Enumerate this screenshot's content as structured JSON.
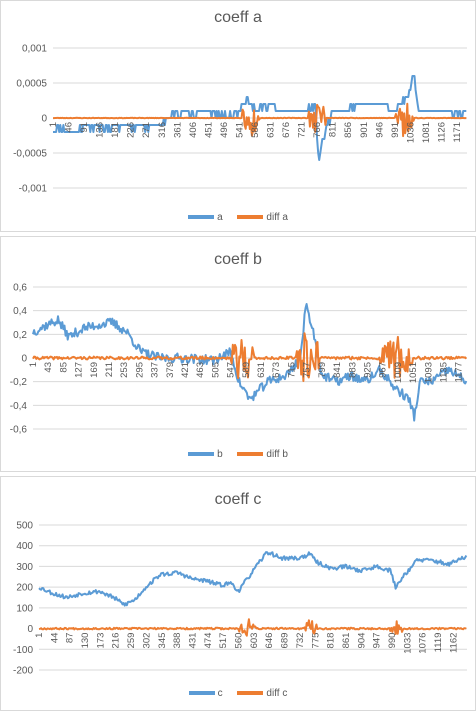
{
  "colors": {
    "series1": "#5b9bd5",
    "series2": "#ed7d31",
    "grid": "#d9d9d9",
    "text": "#595959"
  },
  "chart_data": [
    {
      "type": "line",
      "title": "coeff a",
      "ylim": [
        -0.001,
        0.001
      ],
      "yticks": [
        "0,001",
        "0,0005",
        "0",
        "-0,0005",
        "-0,001"
      ],
      "ytick_values": [
        0.001,
        0.0005,
        0,
        -0.0005,
        -0.001
      ],
      "xlim": [
        1,
        1200
      ],
      "xticks": [
        1,
        46,
        91,
        136,
        181,
        226,
        271,
        316,
        361,
        406,
        451,
        496,
        541,
        586,
        631,
        676,
        721,
        766,
        811,
        856,
        901,
        946,
        991,
        1036,
        1081,
        1126,
        1171
      ],
      "xtick_labels": [
        "1",
        "46",
        "91",
        "136",
        "181",
        "226",
        "271",
        "316",
        "361",
        "406",
        "451",
        "496",
        "541",
        "586",
        "631",
        "676",
        "721",
        "766",
        "811",
        "856",
        "901",
        "946",
        "991",
        "1036",
        "1081",
        "1126",
        "1171"
      ],
      "legend": "bottom",
      "series": [
        {
          "name": "a",
          "color_key": "series1",
          "keypoints": [
            [
              1,
              -0.00015
            ],
            [
              60,
              -0.0002
            ],
            [
              100,
              -0.0001
            ],
            [
              150,
              -0.00015
            ],
            [
              200,
              -0.0001
            ],
            [
              280,
              -0.00012
            ],
            [
              330,
              -5e-05
            ],
            [
              360,
              0.0001
            ],
            [
              400,
              5e-05
            ],
            [
              450,
              0.0001
            ],
            [
              500,
              0
            ],
            [
              541,
              0.0001
            ],
            [
              560,
              0.0003
            ],
            [
              590,
              0.0001
            ],
            [
              620,
              0.0002
            ],
            [
              660,
              0.0001
            ],
            [
              700,
              0.0001
            ],
            [
              740,
              0.0001
            ],
            [
              760,
              0.0002
            ],
            [
              770,
              -0.0006
            ],
            [
              790,
              -0.0002
            ],
            [
              811,
              0.0001
            ],
            [
              850,
              0.0001
            ],
            [
              900,
              0.0002
            ],
            [
              950,
              0.0002
            ],
            [
              990,
              0.0001
            ],
            [
              1030,
              0.0003
            ],
            [
              1044,
              0.0007
            ],
            [
              1060,
              0.0001
            ],
            [
              1100,
              0.0001
            ],
            [
              1140,
              0.0001
            ],
            [
              1180,
              5e-05
            ],
            [
              1200,
              0.0001
            ]
          ],
          "amplitude": 5e-05,
          "seed": 11
        },
        {
          "name": "diff a",
          "color_key": "series2",
          "keypoints": [
            [
              1,
              0
            ],
            [
              1200,
              0
            ]
          ],
          "amplitude": 3e-06,
          "bursts": [
            [
              550,
              600,
              0.0003
            ],
            [
              740,
              790,
              0.0003
            ],
            [
              990,
              1045,
              0.0003
            ]
          ],
          "seed": 23
        }
      ]
    },
    {
      "type": "line",
      "title": "coeff b",
      "ylim": [
        -0.6,
        0.6
      ],
      "yticks": [
        "0,6",
        "0,4",
        "0,2",
        "0",
        "-0,2",
        "-0,4",
        "-0,6"
      ],
      "ytick_values": [
        0.6,
        0.4,
        0.2,
        0,
        -0.2,
        -0.4,
        -0.6
      ],
      "xlim": [
        1,
        1200
      ],
      "xticks": [
        1,
        43,
        85,
        127,
        169,
        211,
        253,
        295,
        337,
        379,
        421,
        463,
        505,
        547,
        589,
        631,
        673,
        715,
        757,
        799,
        841,
        883,
        925,
        967,
        1009,
        1051,
        1093,
        1135,
        1177
      ],
      "xtick_labels": [
        "1",
        "43",
        "85",
        "127",
        "169",
        "211",
        "253",
        "295",
        "337",
        "379",
        "421",
        "463",
        "505",
        "547",
        "589",
        "631",
        "673",
        "715",
        "757",
        "799",
        "841",
        "883",
        "925",
        "967",
        "1009",
        "1051",
        "1093",
        "1135",
        "1177"
      ],
      "legend": "bottom",
      "series": [
        {
          "name": "b",
          "color_key": "series1",
          "keypoints": [
            [
              1,
              0.22
            ],
            [
              40,
              0.28
            ],
            [
              70,
              0.32
            ],
            [
              100,
              0.18
            ],
            [
              140,
              0.25
            ],
            [
              180,
              0.28
            ],
            [
              220,
              0.3
            ],
            [
              260,
              0.22
            ],
            [
              300,
              0.05
            ],
            [
              350,
              0.0
            ],
            [
              420,
              0.0
            ],
            [
              500,
              -0.02
            ],
            [
              547,
              0.05
            ],
            [
              570,
              -0.2
            ],
            [
              600,
              -0.35
            ],
            [
              650,
              -0.2
            ],
            [
              700,
              -0.15
            ],
            [
              740,
              0.0
            ],
            [
              755,
              0.45
            ],
            [
              770,
              0.3
            ],
            [
              800,
              -0.15
            ],
            [
              840,
              -0.2
            ],
            [
              880,
              -0.15
            ],
            [
              920,
              -0.2
            ],
            [
              960,
              -0.1
            ],
            [
              1000,
              -0.25
            ],
            [
              1040,
              -0.35
            ],
            [
              1055,
              -0.5
            ],
            [
              1070,
              -0.2
            ],
            [
              1100,
              -0.2
            ],
            [
              1150,
              -0.1
            ],
            [
              1200,
              -0.2
            ]
          ],
          "amplitude": 0.04,
          "seed": 37
        },
        {
          "name": "diff b",
          "color_key": "series2",
          "keypoints": [
            [
              1,
              0
            ],
            [
              1200,
              0
            ]
          ],
          "amplitude": 0.012,
          "bursts": [
            [
              550,
              610,
              0.25
            ],
            [
              730,
              790,
              0.3
            ],
            [
              960,
              1050,
              0.2
            ]
          ],
          "seed": 41
        }
      ]
    },
    {
      "type": "line",
      "title": "coeff c",
      "ylim": [
        -200,
        500
      ],
      "yticks": [
        "500",
        "400",
        "300",
        "200",
        "100",
        "0",
        "-100",
        "-200"
      ],
      "ytick_values": [
        500,
        400,
        300,
        200,
        100,
        0,
        -100,
        -200
      ],
      "xlim": [
        1,
        1200
      ],
      "xticks": [
        1,
        44,
        87,
        130,
        173,
        216,
        259,
        302,
        345,
        388,
        431,
        474,
        517,
        560,
        603,
        646,
        689,
        732,
        775,
        818,
        861,
        904,
        947,
        990,
        1033,
        1076,
        1119,
        1162
      ],
      "xtick_labels": [
        "1",
        "44",
        "87",
        "130",
        "173",
        "216",
        "259",
        "302",
        "345",
        "388",
        "431",
        "474",
        "517",
        "560",
        "603",
        "646",
        "689",
        "732",
        "775",
        "818",
        "861",
        "904",
        "947",
        "990",
        "1033",
        "1076",
        "1119",
        "1162"
      ],
      "legend": "bottom",
      "series": [
        {
          "name": "c",
          "color_key": "series1",
          "keypoints": [
            [
              1,
              200
            ],
            [
              40,
              170
            ],
            [
              80,
              150
            ],
            [
              120,
              170
            ],
            [
              170,
              180
            ],
            [
              210,
              150
            ],
            [
              240,
              115
            ],
            [
              270,
              140
            ],
            [
              300,
              200
            ],
            [
              340,
              260
            ],
            [
              390,
              270
            ],
            [
              430,
              240
            ],
            [
              470,
              230
            ],
            [
              510,
              210
            ],
            [
              540,
              220
            ],
            [
              560,
              180
            ],
            [
              580,
              230
            ],
            [
              610,
              300
            ],
            [
              640,
              370
            ],
            [
              680,
              340
            ],
            [
              730,
              340
            ],
            [
              760,
              360
            ],
            [
              780,
              320
            ],
            [
              820,
              290
            ],
            [
              860,
              300
            ],
            [
              900,
              280
            ],
            [
              950,
              300
            ],
            [
              985,
              280
            ],
            [
              1000,
              200
            ],
            [
              1020,
              250
            ],
            [
              1060,
              330
            ],
            [
              1100,
              330
            ],
            [
              1150,
              310
            ],
            [
              1200,
              350
            ]
          ],
          "amplitude": 10,
          "seed": 53
        },
        {
          "name": "diff c",
          "color_key": "series2",
          "keypoints": [
            [
              1,
              0
            ],
            [
              1200,
              0
            ]
          ],
          "amplitude": 4,
          "bursts": [
            [
              560,
              610,
              50
            ],
            [
              745,
              780,
              50
            ],
            [
              985,
              1020,
              40
            ]
          ],
          "seed": 67
        }
      ]
    }
  ]
}
